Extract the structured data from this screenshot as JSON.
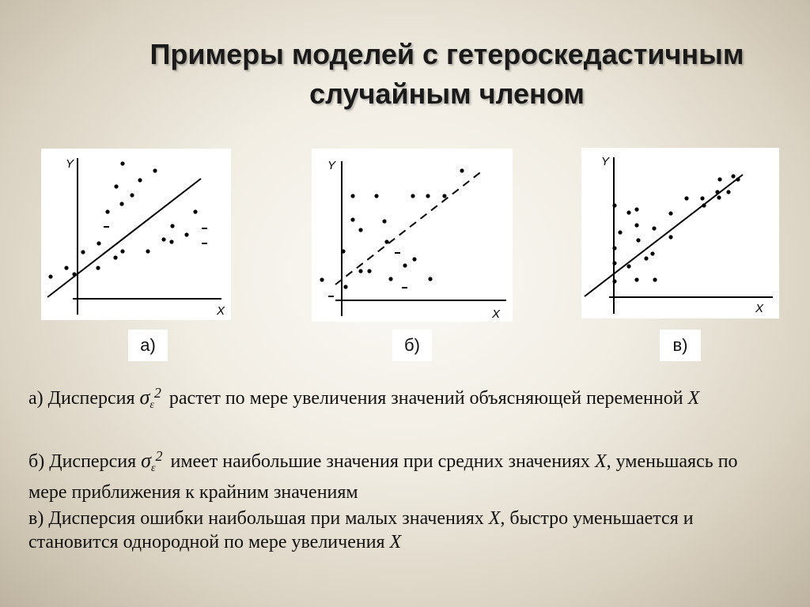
{
  "title_line1": "Примеры моделей с гетероскедастичным",
  "title_line2": "случайным членом",
  "panels": [
    {
      "caption": "а)",
      "x_label": "X",
      "y_label": "Y"
    },
    {
      "caption": "б)",
      "x_label": "X",
      "y_label": "Y"
    },
    {
      "caption": "в)",
      "x_label": "X",
      "y_label": "Y"
    }
  ],
  "desc_a": {
    "prefix": "а) Дисперсия",
    "sigma": "σ",
    "sigma_sub": "ε",
    "sigma_sup": "2",
    "text1": "растет по мере увеличения значений объясняющей переменной",
    "var": "X"
  },
  "desc_b": {
    "prefix": "б) Дисперсия",
    "sigma": "σ",
    "sigma_sub": "ε",
    "sigma_sup": "2",
    "text1": "имеет наибольшие значения при средних значениях",
    "var": "X",
    "text2": ", уменьшаясь по мере приближения к крайним значениям"
  },
  "desc_c": {
    "text1": "в) Дисперсия ошибки наибольшая при малых значениях",
    "var1": "X",
    "text2": ", быстро уменьшается и становится однородной по мере увеличения",
    "var2": "X"
  },
  "colors": {
    "ink": "#000000",
    "panel_bg": "#ffffff"
  }
}
